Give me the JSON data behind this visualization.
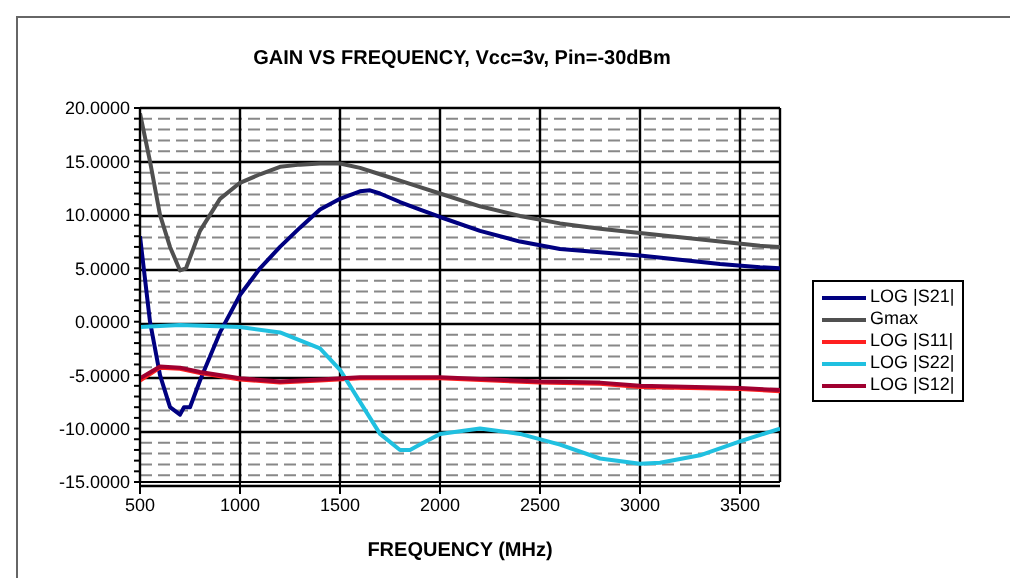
{
  "chart_data": {
    "type": "line",
    "title": "GAIN VS FREQUENCY, Vcc=3v, Pin=-30dBm",
    "xlabel": "FREQUENCY (MHz)",
    "xlim": [
      500,
      3700
    ],
    "xticks": [
      500,
      1000,
      1500,
      2000,
      2500,
      3000,
      3500
    ],
    "ylim": [
      -15,
      20
    ],
    "yticks": [
      {
        "value": -15,
        "label": "-15.0000"
      },
      {
        "value": -14,
        "label": null
      },
      {
        "value": -13,
        "label": null
      },
      {
        "value": -12,
        "label": null
      },
      {
        "value": -11,
        "label": null
      },
      {
        "value": -10,
        "label": "-10.0000"
      },
      {
        "value": -9,
        "label": null
      },
      {
        "value": -8,
        "label": null
      },
      {
        "value": -7,
        "label": null
      },
      {
        "value": -6,
        "label": null
      },
      {
        "value": -5,
        "label": "-5.0000"
      },
      {
        "value": -4,
        "label": null
      },
      {
        "value": -3,
        "label": null
      },
      {
        "value": -2,
        "label": null
      },
      {
        "value": -1,
        "label": null
      },
      {
        "value": 0,
        "label": "0.0000"
      },
      {
        "value": 1,
        "label": null
      },
      {
        "value": 2,
        "label": null
      },
      {
        "value": 3,
        "label": null
      },
      {
        "value": 4,
        "label": null
      },
      {
        "value": 5,
        "label": "5.0000"
      },
      {
        "value": 6,
        "label": null
      },
      {
        "value": 7,
        "label": null
      },
      {
        "value": 8,
        "label": null
      },
      {
        "value": 9,
        "label": null
      },
      {
        "value": 10,
        "label": "10.0000"
      },
      {
        "value": 11,
        "label": null
      },
      {
        "value": 12,
        "label": null
      },
      {
        "value": 13,
        "label": null
      },
      {
        "value": 14,
        "label": null
      },
      {
        "value": 15,
        "label": "15.0000"
      },
      {
        "value": 16,
        "label": null
      },
      {
        "value": 17,
        "label": null
      },
      {
        "value": 18,
        "label": null
      },
      {
        "value": 19,
        "label": null
      },
      {
        "value": 20,
        "label": "20.0000"
      }
    ],
    "grid": true,
    "legend": "right",
    "series": [
      {
        "name": "LOG |S21|",
        "color": "#000080",
        "x": [
          500,
          550,
          600,
          650,
          700,
          720,
          750,
          800,
          900,
          1000,
          1100,
          1200,
          1300,
          1400,
          1500,
          1600,
          1650,
          1700,
          1800,
          1900,
          2000,
          2200,
          2400,
          2600,
          2800,
          3000,
          3200,
          3400,
          3600,
          3700
        ],
        "values": [
          8,
          0,
          -5,
          -8,
          -8.7,
          -8,
          -8,
          -5.5,
          -1,
          2.5,
          5,
          7,
          8.8,
          10.5,
          11.5,
          12.2,
          12.3,
          12,
          11.2,
          10.5,
          9.8,
          8.5,
          7.5,
          6.8,
          6.5,
          6.2,
          5.8,
          5.4,
          5.1,
          5
        ]
      },
      {
        "name": "Gmax",
        "color": "#505050",
        "x": [
          500,
          550,
          600,
          650,
          700,
          730,
          760,
          800,
          900,
          1000,
          1100,
          1200,
          1300,
          1400,
          1500,
          1600,
          1700,
          1800,
          1900,
          2000,
          2200,
          2400,
          2600,
          2800,
          3000,
          3200,
          3400,
          3600,
          3700
        ],
        "values": [
          19.5,
          15,
          10,
          7,
          4.8,
          5,
          6.5,
          8.5,
          11.5,
          13,
          13.8,
          14.5,
          14.7,
          14.8,
          14.8,
          14.4,
          13.8,
          13.2,
          12.6,
          12,
          10.8,
          9.9,
          9.2,
          8.7,
          8.3,
          7.9,
          7.5,
          7.1,
          7
        ]
      },
      {
        "name": "LOG |S11|",
        "color": "#ff2020",
        "x": [
          500,
          600,
          700,
          800,
          1000,
          1200,
          1400,
          1600,
          2000,
          2500,
          2800,
          3000,
          3500,
          3700
        ],
        "values": [
          -5.5,
          -4.3,
          -4.4,
          -4.8,
          -5.4,
          -5.7,
          -5.5,
          -5.3,
          -5.3,
          -5.7,
          -5.8,
          -6.1,
          -6.3,
          -6.5
        ]
      },
      {
        "name": "LOG |S22|",
        "color": "#20c0e0",
        "x": [
          500,
          700,
          1000,
          1200,
          1400,
          1500,
          1600,
          1700,
          1800,
          1850,
          1900,
          2000,
          2200,
          2400,
          2600,
          2800,
          3000,
          3100,
          3300,
          3500,
          3700
        ],
        "values": [
          -0.5,
          -0.3,
          -0.5,
          -1,
          -2.5,
          -4.5,
          -7.5,
          -10.5,
          -12,
          -12,
          -11.5,
          -10.5,
          -10,
          -10.5,
          -11.5,
          -12.8,
          -13.3,
          -13.2,
          -12.5,
          -11.2,
          -10
        ]
      },
      {
        "name": "LOG |S12|",
        "color": "#a00030",
        "x": [
          500,
          600,
          700,
          800,
          1000,
          1200,
          1400,
          1600,
          2000,
          2500,
          2800,
          3000,
          3500,
          3700
        ],
        "values": [
          -5.3,
          -4.2,
          -4.3,
          -4.7,
          -5.3,
          -5.6,
          -5.4,
          -5.2,
          -5.2,
          -5.6,
          -5.7,
          -6,
          -6.2,
          -6.4
        ]
      }
    ]
  }
}
